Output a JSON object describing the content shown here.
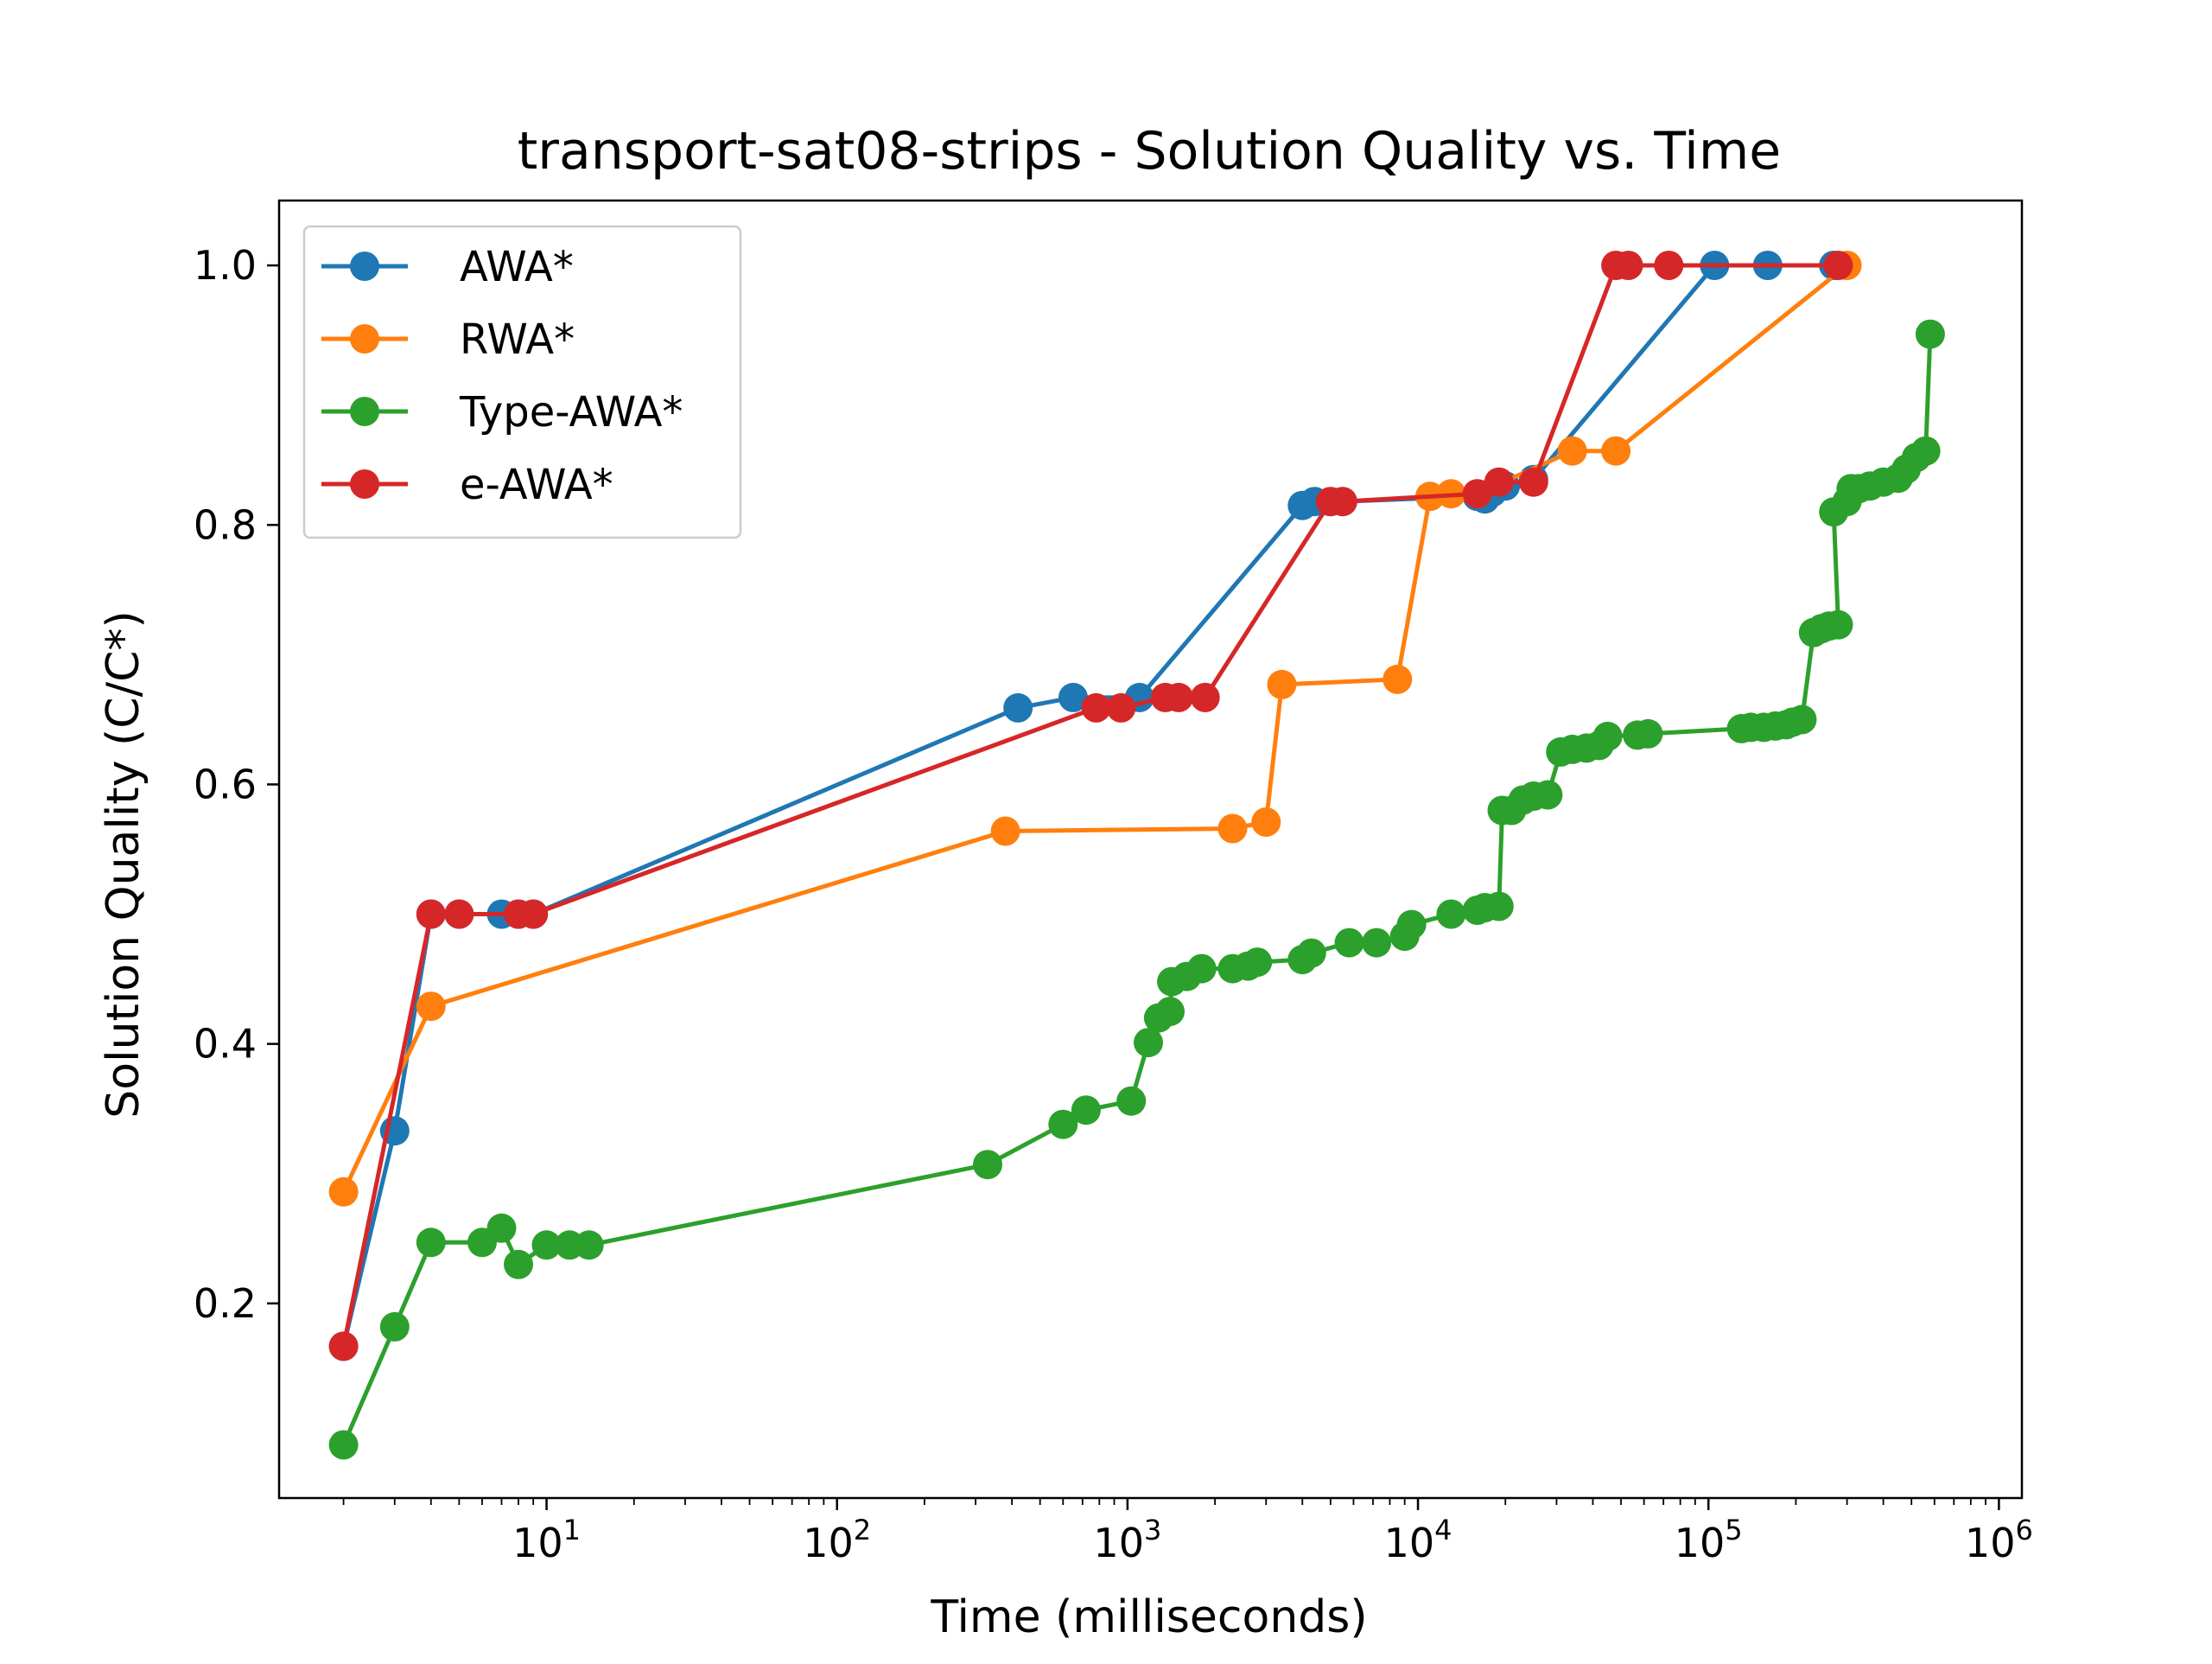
{
  "chart_data": {
    "type": "line",
    "title": "transport-sat08-strips - Solution Quality vs. Time",
    "xlabel": "Time (milliseconds)",
    "ylabel": "Solution Quality (C/C*)",
    "xscale": "log",
    "xlim": [
      1.2,
      1200000
    ],
    "ylim": [
      0.05,
      1.05
    ],
    "x_ticks": [
      {
        "value": 10,
        "base": "10",
        "exp": "1"
      },
      {
        "value": 100,
        "base": "10",
        "exp": "2"
      },
      {
        "value": 1000,
        "base": "10",
        "exp": "3"
      },
      {
        "value": 10000,
        "base": "10",
        "exp": "4"
      },
      {
        "value": 100000,
        "base": "10",
        "exp": "5"
      },
      {
        "value": 1000000,
        "base": "10",
        "exp": "6"
      }
    ],
    "y_ticks": [
      {
        "value": 0.2,
        "label": "0.2"
      },
      {
        "value": 0.4,
        "label": "0.4"
      },
      {
        "value": 0.6,
        "label": "0.6"
      },
      {
        "value": 0.8,
        "label": "0.8"
      },
      {
        "value": 1.0,
        "label": "1.0"
      }
    ],
    "grid": false,
    "legend_position": "top-left",
    "series": [
      {
        "name": "AWA*",
        "color": "#1f77b4",
        "points": [
          [
            2,
            0.167
          ],
          [
            3,
            0.333
          ],
          [
            4,
            0.5
          ],
          [
            5,
            0.5
          ],
          [
            7,
            0.5
          ],
          [
            8,
            0.5
          ],
          [
            9,
            0.5
          ],
          [
            420,
            0.659
          ],
          [
            650,
            0.667
          ],
          [
            1100,
            0.667
          ],
          [
            4000,
            0.815
          ],
          [
            4400,
            0.818
          ],
          [
            5000,
            0.818
          ],
          [
            5500,
            0.818
          ],
          [
            16000,
            0.822
          ],
          [
            17000,
            0.82
          ],
          [
            18000,
            0.825
          ],
          [
            20000,
            0.83
          ],
          [
            25000,
            0.835
          ],
          [
            105000,
            1.0
          ],
          [
            160000,
            1.0
          ],
          [
            270000,
            1.0
          ]
        ]
      },
      {
        "name": "RWA*",
        "color": "#ff7f0e",
        "points": [
          [
            2,
            0.286
          ],
          [
            4,
            0.429
          ],
          [
            380,
            0.564
          ],
          [
            2300,
            0.566
          ],
          [
            3000,
            0.571
          ],
          [
            3400,
            0.677
          ],
          [
            8500,
            0.681
          ],
          [
            11000,
            0.822
          ],
          [
            13000,
            0.824
          ],
          [
            16000,
            0.824
          ],
          [
            34000,
            0.857
          ],
          [
            48000,
            0.857
          ],
          [
            300000,
            1.0
          ]
        ]
      },
      {
        "name": "Type-AWA*",
        "color": "#2ca02c",
        "points": [
          [
            2,
            0.091
          ],
          [
            3,
            0.182
          ],
          [
            4,
            0.247
          ],
          [
            6,
            0.247
          ],
          [
            7,
            0.258
          ],
          [
            8,
            0.23
          ],
          [
            10,
            0.245
          ],
          [
            12,
            0.245
          ],
          [
            14,
            0.245
          ],
          [
            330,
            0.307
          ],
          [
            600,
            0.338
          ],
          [
            720,
            0.349
          ],
          [
            1030,
            0.356
          ],
          [
            1180,
            0.401
          ],
          [
            1280,
            0.42
          ],
          [
            1400,
            0.425
          ],
          [
            1420,
            0.448
          ],
          [
            1600,
            0.452
          ],
          [
            1800,
            0.458
          ],
          [
            2300,
            0.458
          ],
          [
            2600,
            0.46
          ],
          [
            2800,
            0.463
          ],
          [
            4000,
            0.465
          ],
          [
            4300,
            0.47
          ],
          [
            5800,
            0.478
          ],
          [
            7200,
            0.478
          ],
          [
            9000,
            0.483
          ],
          [
            9500,
            0.492
          ],
          [
            13000,
            0.5
          ],
          [
            16000,
            0.503
          ],
          [
            17000,
            0.505
          ],
          [
            19000,
            0.506
          ],
          [
            19500,
            0.58
          ],
          [
            21000,
            0.58
          ],
          [
            23000,
            0.588
          ],
          [
            25000,
            0.591
          ],
          [
            28000,
            0.592
          ],
          [
            31000,
            0.625
          ],
          [
            34000,
            0.627
          ],
          [
            38000,
            0.628
          ],
          [
            42000,
            0.63
          ],
          [
            45000,
            0.637
          ],
          [
            57000,
            0.638
          ],
          [
            62000,
            0.639
          ],
          [
            130000,
            0.643
          ],
          [
            140000,
            0.644
          ],
          [
            155000,
            0.644
          ],
          [
            170000,
            0.645
          ],
          [
            185000,
            0.646
          ],
          [
            195000,
            0.648
          ],
          [
            210000,
            0.65
          ],
          [
            230000,
            0.717
          ],
          [
            245000,
            0.72
          ],
          [
            260000,
            0.722
          ],
          [
            280000,
            0.723
          ],
          [
            270000,
            0.81
          ],
          [
            300000,
            0.818
          ],
          [
            310000,
            0.828
          ],
          [
            330000,
            0.828
          ],
          [
            360000,
            0.83
          ],
          [
            400000,
            0.833
          ],
          [
            450000,
            0.836
          ],
          [
            480000,
            0.843
          ],
          [
            520000,
            0.852
          ],
          [
            560000,
            0.857
          ],
          [
            580000,
            0.947
          ]
        ]
      },
      {
        "name": "e-AWA*",
        "color": "#d62728",
        "points": [
          [
            2,
            0.167
          ],
          [
            4,
            0.5
          ],
          [
            5,
            0.5
          ],
          [
            8,
            0.5
          ],
          [
            9,
            0.5
          ],
          [
            780,
            0.659
          ],
          [
            950,
            0.659
          ],
          [
            1350,
            0.667
          ],
          [
            1500,
            0.667
          ],
          [
            1850,
            0.667
          ],
          [
            5000,
            0.818
          ],
          [
            5500,
            0.818
          ],
          [
            16000,
            0.824
          ],
          [
            19000,
            0.833
          ],
          [
            25000,
            0.833
          ],
          [
            48000,
            1.0
          ],
          [
            53000,
            1.0
          ],
          [
            73000,
            1.0
          ],
          [
            280000,
            1.0
          ]
        ]
      }
    ]
  }
}
